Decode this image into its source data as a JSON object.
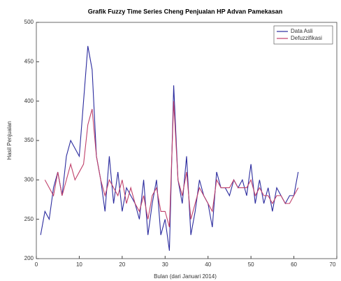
{
  "chart_data": {
    "type": "line",
    "title": "Grafik Fuzzy Time Series Cheng Penjualan HP Advan Pamekasan",
    "x_label": "Bulan (dari Januari 2014)",
    "y_label": "Hasil Penjualan",
    "x": [
      1,
      2,
      3,
      4,
      5,
      6,
      7,
      8,
      9,
      10,
      11,
      12,
      13,
      14,
      15,
      16,
      17,
      18,
      19,
      20,
      21,
      22,
      23,
      24,
      25,
      26,
      27,
      28,
      29,
      30,
      31,
      32,
      33,
      34,
      35,
      36,
      37,
      38,
      39,
      40,
      41,
      42,
      43,
      44,
      45,
      46,
      47,
      48,
      49,
      50,
      51,
      52,
      53,
      54,
      55,
      56,
      57,
      58,
      59,
      60,
      61
    ],
    "series": [
      {
        "name": "Data Asli",
        "color": "#2b2b9e",
        "values": [
          230,
          260,
          250,
          290,
          310,
          280,
          330,
          350,
          340,
          330,
          400,
          470,
          440,
          330,
          300,
          260,
          330,
          270,
          310,
          260,
          290,
          280,
          270,
          250,
          300,
          230,
          270,
          300,
          230,
          250,
          210,
          420,
          300,
          270,
          330,
          230,
          260,
          300,
          280,
          270,
          240,
          310,
          290,
          290,
          280,
          300,
          290,
          300,
          280,
          320,
          270,
          300,
          270,
          290,
          260,
          290,
          280,
          270,
          280,
          280,
          310
        ]
      },
      {
        "name": "Defuzzifikasi",
        "color": "#c0406a",
        "values": [
          null,
          300,
          290,
          280,
          310,
          280,
          300,
          320,
          300,
          310,
          320,
          370,
          390,
          330,
          300,
          280,
          300,
          290,
          280,
          300,
          270,
          290,
          270,
          260,
          280,
          250,
          280,
          290,
          260,
          260,
          240,
          400,
          300,
          280,
          310,
          250,
          270,
          290,
          280,
          270,
          260,
          300,
          290,
          290,
          290,
          300,
          290,
          290,
          290,
          300,
          280,
          290,
          280,
          280,
          270,
          280,
          280,
          270,
          270,
          280,
          290
        ]
      }
    ],
    "xlim": [
      0,
      70
    ],
    "xticks": [
      0,
      10,
      20,
      30,
      40,
      50,
      60,
      70
    ],
    "ylim": [
      200,
      500
    ],
    "yticks": [
      200,
      250,
      300,
      350,
      400,
      450,
      500
    ],
    "legend": "upper right"
  }
}
